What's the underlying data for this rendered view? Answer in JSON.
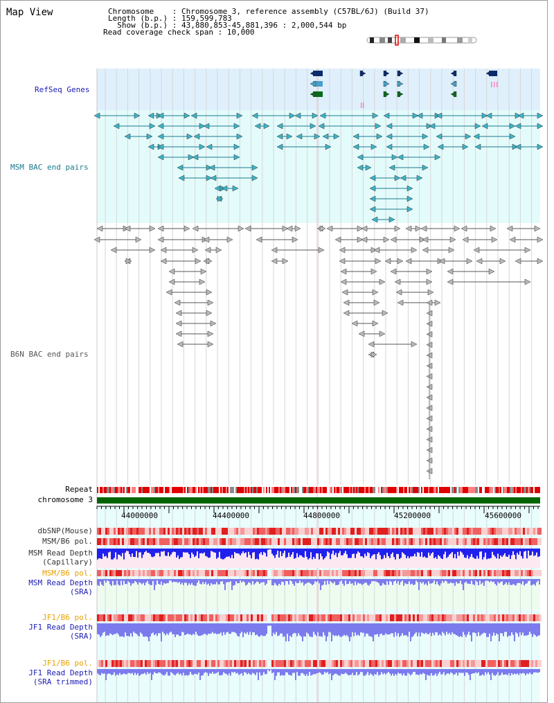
{
  "page": {
    "title": "Map View"
  },
  "header": {
    "chromosome_line": "Chromosome    : Chromosome 3, reference assembly (C57BL/6J) (Build 37)",
    "length_line": "Length (b.p.) : 159,599,783",
    "show_line": "  Show (b.p.) : 43,880,853-45,881,396 : 2,000,544 bp",
    "coverage_line": "Read coverage check span : 10,000"
  },
  "tracks": {
    "refseq": "RefSeq Genes",
    "msm_bac": "MSM BAC end pairs",
    "b6n_bac": "B6N BAC end pairs",
    "repeat": "Repeat",
    "chromosome": "chromosome 3",
    "dbsnp": "dbSNP(Mouse)",
    "msm_b6_pol_1": "MSM/B6 pol.",
    "msm_read_depth_cap_1": "MSM Read Depth",
    "msm_read_depth_cap_2": "(Capillary)",
    "msm_b6_pol_2": "MSM/B6 pol.",
    "msm_read_depth_sra_1": "MSM Read Depth",
    "msm_read_depth_sra_2": "(SRA)",
    "jf1_b6_pol_1": "JF1/B6 pol.",
    "jf1_read_depth_sra_1": "JF1 Read Depth",
    "jf1_read_depth_sra_2": "(SRA)",
    "jf1_b6_pol_2": "JF1/B6 pol.",
    "jf1_read_depth_trim_1": "JF1 Read Depth",
    "jf1_read_depth_trim_2": "(SRA trimmed)"
  },
  "axis": {
    "ticks": [
      "44000000",
      "44400000",
      "44800000",
      "45200000",
      "45600000"
    ]
  },
  "colors": {
    "refseq_bg": "#dff0fc",
    "msm_bg": "#e4fbfb",
    "track_bg": "#e9fdfd",
    "msm_line": "#177a8e",
    "b6n_line": "#555555",
    "chrom": "#006400",
    "repeat": "#e00000",
    "depth_blue": "#2020ee",
    "depth_purple": "#7b7bee",
    "label_blue": "#1a1ab5",
    "label_orange": "#e8a000"
  }
}
